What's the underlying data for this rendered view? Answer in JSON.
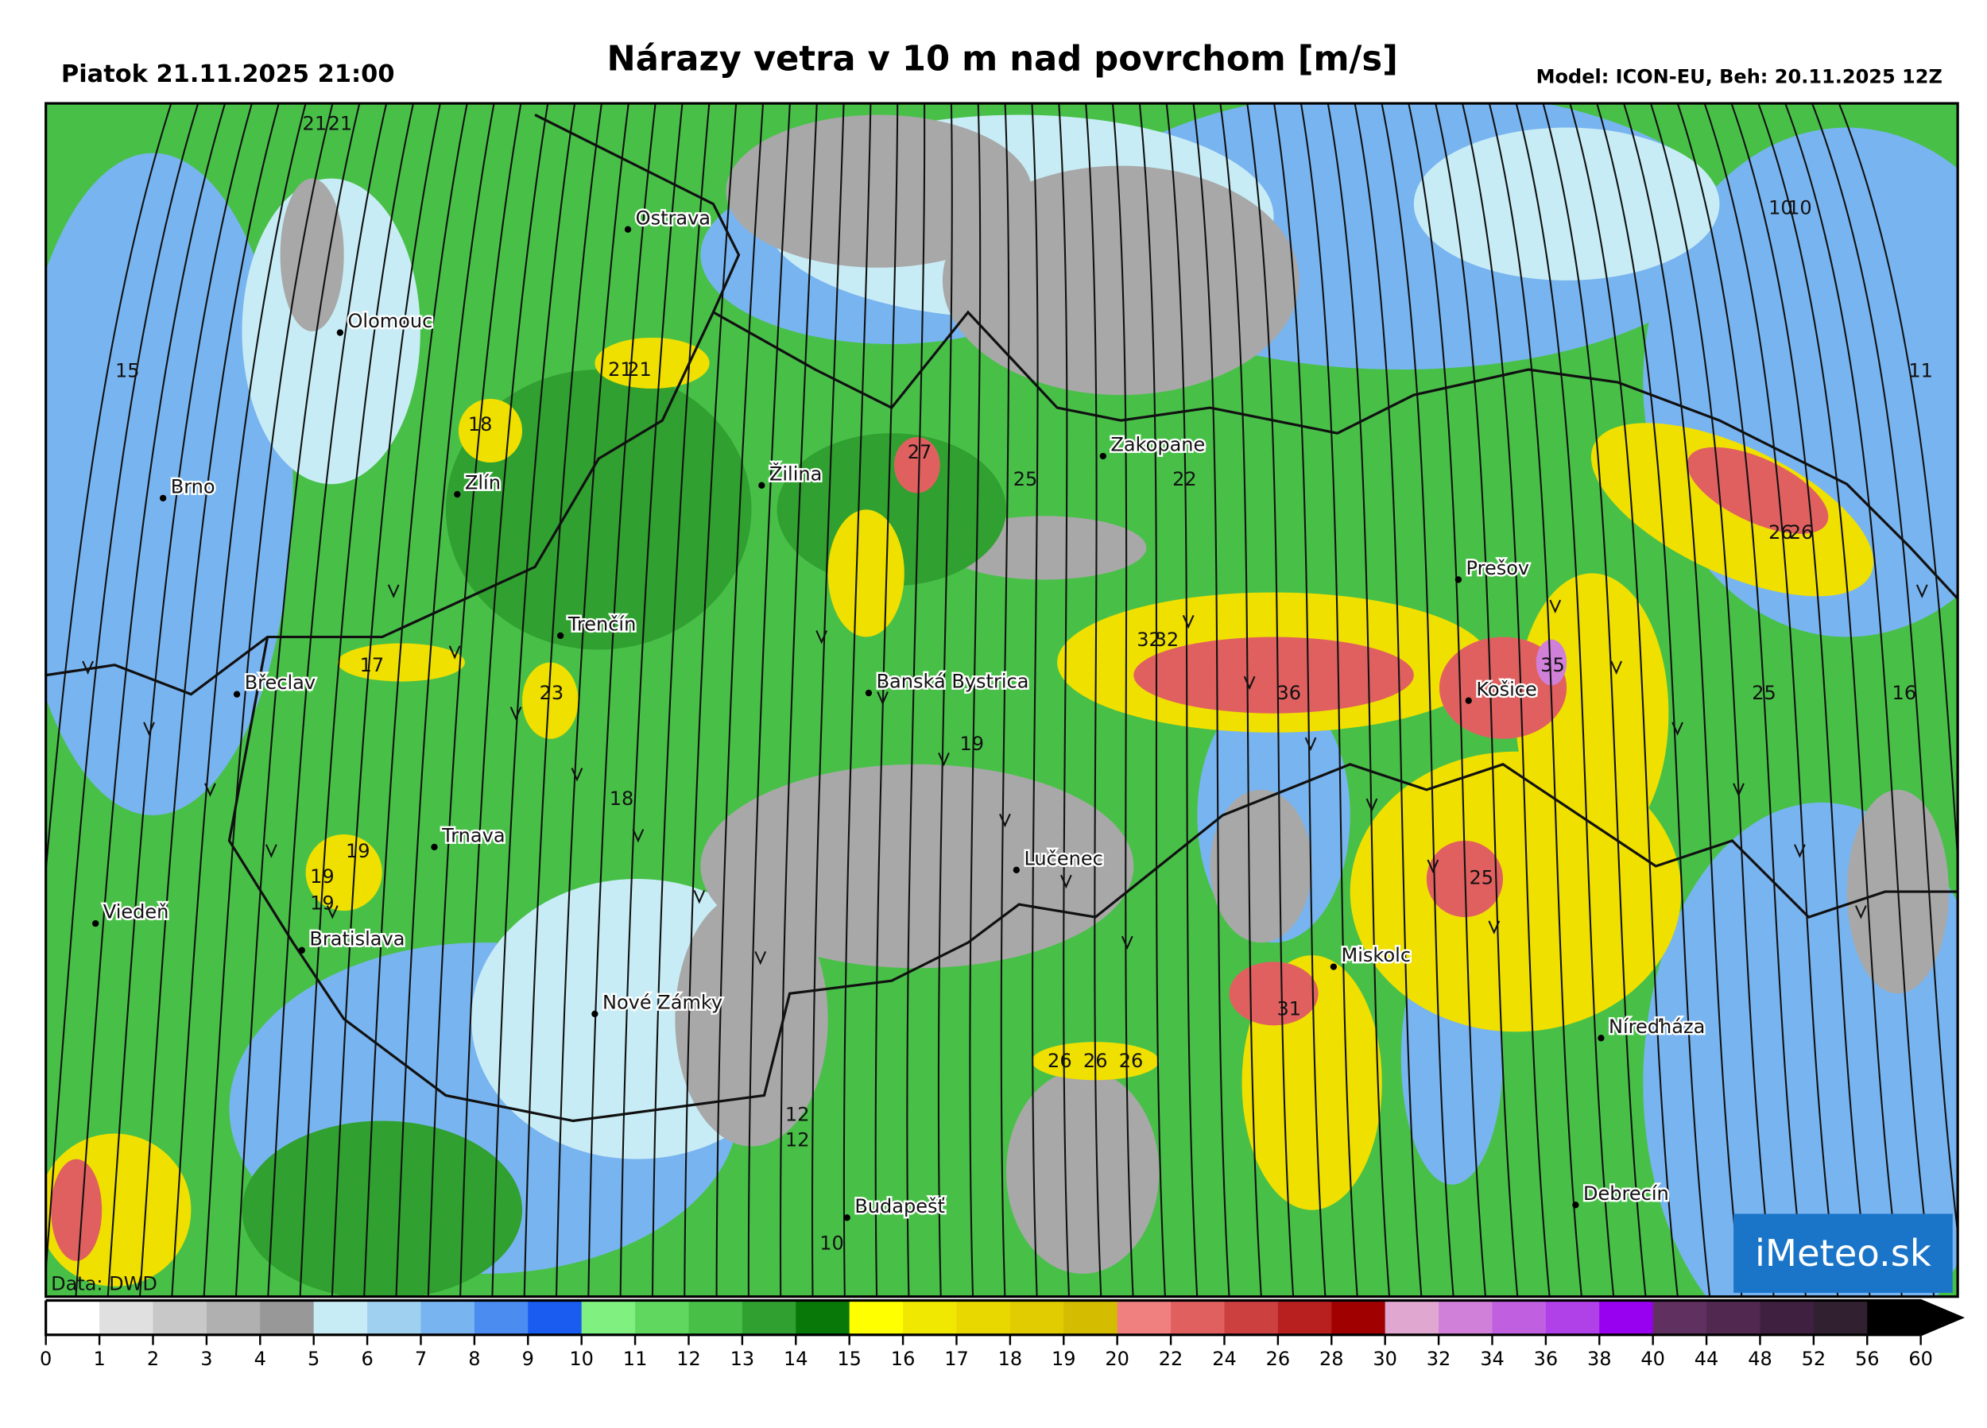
{
  "header": {
    "date": "Piatok 21.11.2025 21:00",
    "title": "Nárazy vetra v 10 m nad povrchom [m/s]",
    "model": "Model: ICON-EU, Beh: 20.11.2025 12Z"
  },
  "source": "Data: DWD",
  "logo": "iMeteo.sk",
  "cities": [
    "Ostrava",
    "Olomouc",
    "Brno",
    "Zlín",
    "Žilina",
    "Zakopane",
    "Prešov",
    "Trenčín",
    "Břeclav",
    "Banská Bystrica",
    "Košice",
    "Trnava",
    "Viedeň",
    "Bratislava",
    "Lučenec",
    "Miskolc",
    "Nové Zámky",
    "Níreďháza",
    "Budapešť",
    "Debrecín"
  ],
  "map_labels": [
    21,
    21,
    10,
    10,
    15,
    21,
    21,
    11,
    18,
    27,
    25,
    22,
    26,
    26,
    32,
    32,
    17,
    35,
    36,
    23,
    25,
    16,
    19,
    18,
    19,
    19,
    19,
    25,
    31,
    26,
    26,
    26,
    12,
    12,
    10
  ],
  "colorbar": {
    "ticks": [
      0,
      1,
      2,
      3,
      4,
      5,
      6,
      7,
      8,
      9,
      10,
      11,
      12,
      13,
      14,
      15,
      16,
      17,
      18,
      19,
      20,
      22,
      24,
      26,
      28,
      30,
      32,
      34,
      36,
      38,
      40,
      44,
      48,
      52,
      56,
      60
    ],
    "colors": [
      "#ffffff",
      "#e0e0e0",
      "#c8c8c8",
      "#b0b0b0",
      "#989898",
      "#c8ecf5",
      "#a0d0f0",
      "#78b4f0",
      "#4a8cf0",
      "#1a5cf0",
      "#80f080",
      "#60d860",
      "#48c048",
      "#30a030",
      "#087808",
      "#ffff00",
      "#f0e800",
      "#e8d800",
      "#e0cc00",
      "#d4bc00",
      "#f08080",
      "#e06060",
      "#cc4040",
      "#b82020",
      "#a00000",
      "#e0a8d0",
      "#d080d8",
      "#c060e0",
      "#b040e8",
      "#9800f0",
      "#603060",
      "#502850",
      "#402040",
      "#302030",
      "#000000"
    ]
  }
}
